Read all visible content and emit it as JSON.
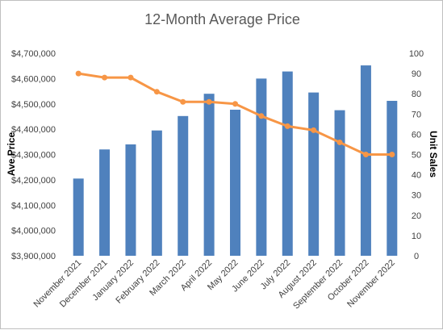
{
  "chart_data": {
    "type": "bar",
    "title": "12-Month Average Price",
    "categories": [
      "November 2021",
      "December 2021",
      "January 2022",
      "February 2022",
      "March 2022",
      "April 2022",
      "May 2022",
      "June 2022",
      "July 2022",
      "August 2022",
      "September 2022",
      "October 2022",
      "November 2022"
    ],
    "series": [
      {
        "type": "bar",
        "axis": "left",
        "color": "#4f81bd",
        "values": [
          4205000,
          4320000,
          4340000,
          4395000,
          4452000,
          4540000,
          4477000,
          4600000,
          4628000,
          4545000,
          4475000,
          4652000,
          4512000
        ]
      },
      {
        "type": "line",
        "axis": "right",
        "color": "#f79646",
        "values": [
          90,
          88,
          88,
          81,
          76,
          76,
          75,
          69,
          64,
          62,
          56,
          50,
          50
        ]
      }
    ],
    "ylabel": "Ave Price",
    "y2label": "Unit Sales",
    "ylim": [
      3900000,
      4700000
    ],
    "y2lim": [
      0,
      100
    ],
    "yticks": [
      "$3,900,000",
      "$4,000,000",
      "$4,100,000",
      "$4,200,000",
      "$4,300,000",
      "$4,400,000",
      "$4,500,000",
      "$4,600,000",
      "$4,700,000"
    ],
    "y2ticks": [
      "0",
      "10",
      "20",
      "30",
      "40",
      "50",
      "60",
      "70",
      "80",
      "90",
      "100"
    ],
    "grid": false,
    "legend": "none"
  }
}
